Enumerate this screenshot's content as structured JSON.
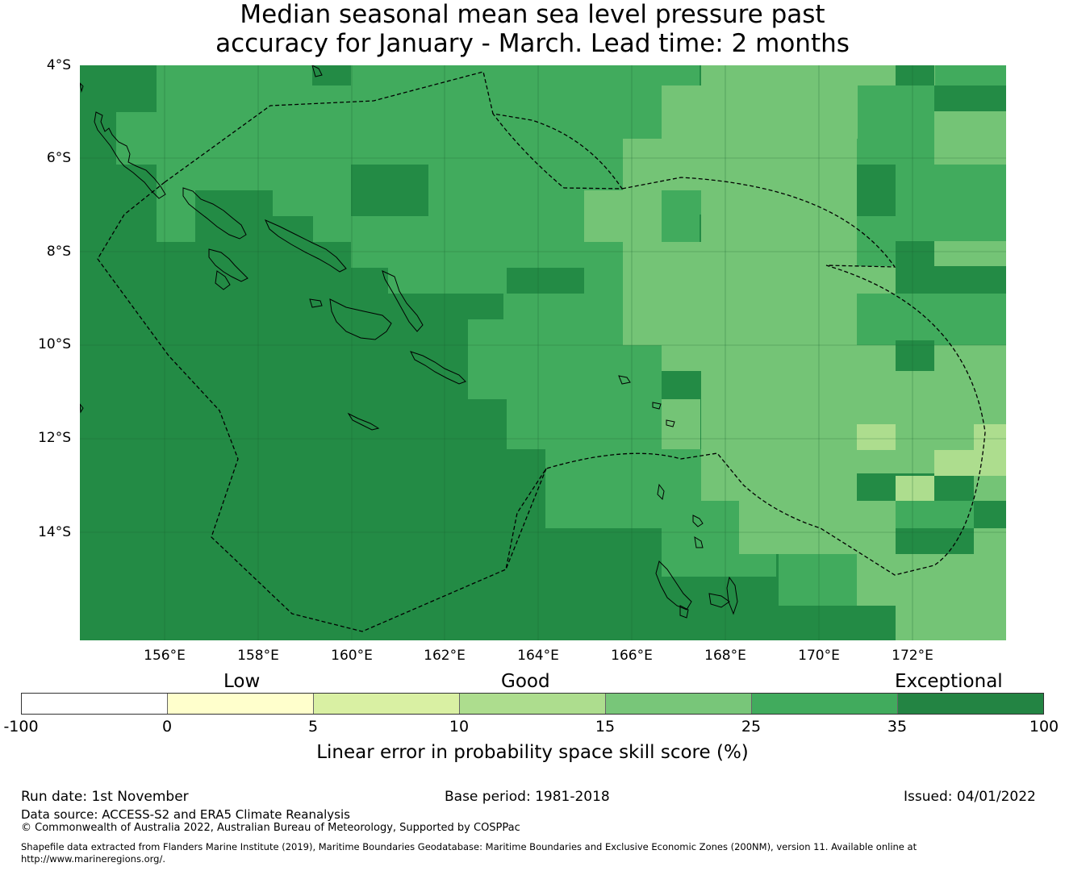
{
  "title": {
    "line1": "Median seasonal mean sea level pressure past",
    "line2": "accuracy for January - March. Lead time: 2 months"
  },
  "map": {
    "lat_labels": [
      "4°S",
      "6°S",
      "8°S",
      "10°S",
      "12°S",
      "14°S"
    ],
    "lon_labels": [
      "156°E",
      "158°E",
      "160°E",
      "162°E",
      "164°E",
      "166°E",
      "168°E",
      "170°E",
      "172°E"
    ],
    "colors": {
      "exceptional_dark": "#238b45",
      "good_35": "#41ab5d",
      "good_25": "#74c476",
      "good_15": "#addd8e",
      "coast_line": "#000000",
      "boundary_line": "#000000"
    }
  },
  "legend": {
    "categories": [
      "Low",
      "Good",
      "Exceptional"
    ],
    "ticks": [
      "-100",
      "0",
      "5",
      "10",
      "15",
      "25",
      "35",
      "100"
    ],
    "segments": [
      {
        "from": -100,
        "to": 0,
        "color": "#ffffff"
      },
      {
        "from": 0,
        "to": 5,
        "color": "#ffffcc"
      },
      {
        "from": 5,
        "to": 10,
        "color": "#d9f0a3"
      },
      {
        "from": 10,
        "to": 15,
        "color": "#addd8e"
      },
      {
        "from": 15,
        "to": 25,
        "color": "#78c679"
      },
      {
        "from": 25,
        "to": 35,
        "color": "#41ab5d"
      },
      {
        "from": 35,
        "to": 100,
        "color": "#238443"
      }
    ],
    "title": "Linear error in probability space skill score (%)"
  },
  "footer": {
    "run_date": "Run date: 1st November",
    "base_period": "Base period: 1981-2018",
    "issued": "Issued: 04/01/2022",
    "data_source": "Data source: ACCESS-S2 and ERA5 Climate Reanalysis",
    "copyright": "© Commonwealth of Australia 2022, Australian Bureau of Meteorology, Supported by COSPPac",
    "shapefile_line1": "Shapefile data extracted from Flanders Marine Institute (2019), Maritime Boundaries Geodatabase: Maritime Boundaries and Exclusive Economic Zones (200NM), version 11. Available online at",
    "shapefile_line2": "http://www.marineregions.org/."
  }
}
